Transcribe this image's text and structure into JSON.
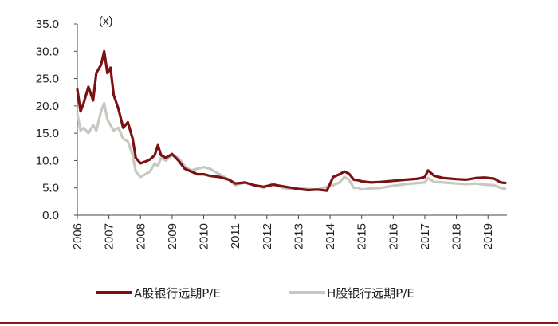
{
  "chart_data": {
    "type": "line",
    "unit_label": "(x)",
    "y_ticks": [
      "35.0",
      "30.0",
      "25.0",
      "20.0",
      "15.0",
      "10.0",
      "5.0",
      "0.0"
    ],
    "x_ticks": [
      "2006",
      "2007",
      "2008",
      "2009",
      "2010",
      "2011",
      "2012",
      "2013",
      "2014",
      "2015",
      "2016",
      "2017",
      "2018",
      "2019"
    ],
    "ylim": [
      0,
      35
    ],
    "xlim": [
      2006.0,
      2019.6
    ],
    "grid": false,
    "legend_position": "bottom",
    "series": [
      {
        "name": "A股银行远期P/E",
        "color": "#7b1113",
        "x": [
          2006.0,
          2006.1,
          2006.2,
          2006.35,
          2006.5,
          2006.6,
          2006.75,
          2006.85,
          2006.95,
          2007.05,
          2007.15,
          2007.3,
          2007.45,
          2007.6,
          2007.75,
          2007.85,
          2008.0,
          2008.15,
          2008.3,
          2008.45,
          2008.55,
          2008.65,
          2008.8,
          2009.0,
          2009.2,
          2009.4,
          2009.6,
          2009.8,
          2010.0,
          2010.2,
          2010.5,
          2010.8,
          2011.0,
          2011.3,
          2011.6,
          2011.9,
          2012.2,
          2012.5,
          2012.8,
          2013.0,
          2013.3,
          2013.6,
          2013.9,
          2014.1,
          2014.3,
          2014.45,
          2014.6,
          2014.75,
          2014.9,
          2015.0,
          2015.3,
          2015.6,
          2016.0,
          2016.4,
          2016.8,
          2017.0,
          2017.1,
          2017.3,
          2017.6,
          2018.0,
          2018.3,
          2018.6,
          2018.9,
          2019.2,
          2019.4,
          2019.55
        ],
        "y": [
          23.0,
          19.0,
          20.5,
          23.5,
          21.0,
          26.0,
          27.5,
          30.0,
          26.0,
          27.0,
          22.0,
          19.5,
          16.0,
          17.0,
          14.0,
          10.5,
          9.5,
          9.8,
          10.2,
          11.0,
          12.8,
          11.0,
          10.5,
          11.2,
          10.0,
          8.5,
          8.0,
          7.5,
          7.5,
          7.2,
          7.0,
          6.5,
          5.8,
          6.0,
          5.5,
          5.2,
          5.6,
          5.3,
          5.0,
          4.8,
          4.6,
          4.7,
          4.5,
          7.0,
          7.5,
          8.0,
          7.6,
          6.5,
          6.4,
          6.2,
          6.0,
          6.1,
          6.3,
          6.5,
          6.7,
          7.0,
          8.2,
          7.2,
          6.8,
          6.6,
          6.5,
          6.8,
          6.9,
          6.7,
          6.0,
          5.9
        ]
      },
      {
        "name": "H股银行远期P/E",
        "color": "#c8c8c0",
        "x": [
          2006.0,
          2006.1,
          2006.2,
          2006.35,
          2006.5,
          2006.6,
          2006.75,
          2006.85,
          2006.95,
          2007.05,
          2007.15,
          2007.3,
          2007.45,
          2007.6,
          2007.75,
          2007.85,
          2008.0,
          2008.15,
          2008.3,
          2008.45,
          2008.55,
          2008.65,
          2008.8,
          2009.0,
          2009.2,
          2009.4,
          2009.6,
          2009.8,
          2010.0,
          2010.2,
          2010.5,
          2010.8,
          2011.0,
          2011.3,
          2011.6,
          2011.9,
          2012.2,
          2012.5,
          2012.8,
          2013.0,
          2013.3,
          2013.6,
          2013.9,
          2014.1,
          2014.3,
          2014.45,
          2014.6,
          2014.75,
          2014.9,
          2015.0,
          2015.3,
          2015.6,
          2016.0,
          2016.4,
          2016.8,
          2017.0,
          2017.1,
          2017.3,
          2017.6,
          2018.0,
          2018.3,
          2018.6,
          2018.9,
          2019.2,
          2019.4,
          2019.55
        ],
        "y": [
          18.5,
          15.5,
          16.0,
          15.0,
          16.5,
          15.5,
          19.0,
          20.5,
          17.5,
          16.5,
          15.5,
          16.0,
          14.0,
          13.5,
          11.0,
          8.0,
          7.0,
          7.5,
          8.0,
          9.5,
          9.0,
          10.5,
          10.0,
          11.0,
          10.5,
          9.0,
          8.2,
          8.5,
          8.8,
          8.5,
          7.5,
          6.5,
          5.5,
          6.0,
          5.5,
          5.0,
          5.8,
          5.0,
          4.8,
          5.0,
          4.8,
          4.7,
          5.2,
          5.5,
          6.0,
          7.0,
          6.5,
          5.0,
          5.0,
          4.7,
          4.9,
          5.0,
          5.4,
          5.7,
          5.9,
          6.0,
          6.8,
          6.1,
          6.0,
          5.8,
          5.7,
          5.8,
          5.6,
          5.5,
          5.0,
          4.8
        ]
      }
    ]
  }
}
